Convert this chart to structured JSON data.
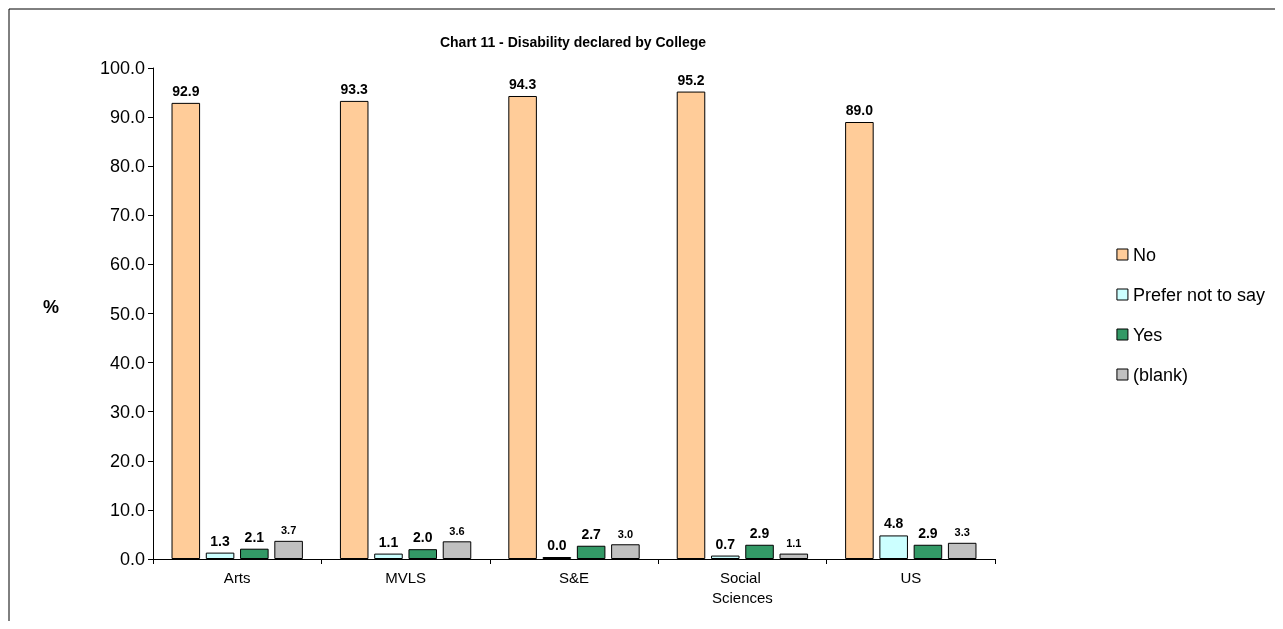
{
  "chart_data": {
    "type": "bar",
    "title": "Chart 11 - Disability declared by College",
    "ylabel": "%",
    "categories": [
      "Arts",
      "MVLS",
      "S&E",
      "Social Sciences",
      "US"
    ],
    "series": [
      {
        "name": "No",
        "color": "#ffcc99",
        "values": [
          92.9,
          93.3,
          94.3,
          95.2,
          89.0
        ],
        "value_labels": [
          "92.9",
          "93.3",
          "94.3",
          "95.2",
          "89.0"
        ]
      },
      {
        "name": "Prefer not to say",
        "color": "#ccffff",
        "values": [
          1.3,
          1.1,
          0.0,
          0.7,
          4.8
        ],
        "value_labels": [
          "1.3",
          "1.1",
          "0.0",
          "0.7",
          "4.8"
        ]
      },
      {
        "name": "Yes",
        "color": "#339966",
        "values": [
          2.1,
          2.0,
          2.7,
          2.9,
          2.9
        ],
        "value_labels": [
          "2.1",
          "2.0",
          "2.7",
          "2.9",
          "2.9"
        ]
      },
      {
        "name": "(blank)",
        "color": "#c0c0c0",
        "values": [
          3.7,
          3.6,
          3.0,
          1.1,
          3.3
        ],
        "value_labels": [
          "3.7",
          "3.6",
          "3.0",
          "1.1",
          "3.3"
        ]
      }
    ],
    "ylim": [
      0,
      100
    ],
    "yticks": [
      {
        "value": 0,
        "label": "0.0"
      },
      {
        "value": 10,
        "label": "10.0"
      },
      {
        "value": 20,
        "label": "20.0"
      },
      {
        "value": 30,
        "label": "30.0"
      },
      {
        "value": 40,
        "label": "40.0"
      },
      {
        "value": 50,
        "label": "50.0"
      },
      {
        "value": 60,
        "label": "60.0"
      },
      {
        "value": 70,
        "label": "70.0"
      },
      {
        "value": 80,
        "label": "80.0"
      },
      {
        "value": 90,
        "label": "90.0"
      },
      {
        "value": 100,
        "label": "100.0"
      }
    ],
    "grid": false,
    "legend": "right"
  }
}
